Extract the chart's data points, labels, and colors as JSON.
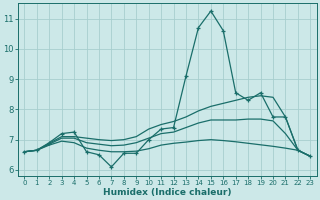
{
  "xlabel": "Humidex (Indice chaleur)",
  "bg_color": "#cce8e8",
  "grid_color": "#a8cece",
  "line_color": "#1a6e6a",
  "xlim": [
    -0.5,
    23.5
  ],
  "ylim": [
    5.8,
    11.5
  ],
  "xticks": [
    0,
    1,
    2,
    3,
    4,
    5,
    6,
    7,
    8,
    9,
    10,
    11,
    12,
    13,
    14,
    15,
    16,
    17,
    18,
    19,
    20,
    21,
    22,
    23
  ],
  "yticks": [
    6,
    7,
    8,
    9,
    10,
    11
  ],
  "line_jagged_x": [
    0,
    1,
    2,
    3,
    4,
    5,
    6,
    7,
    8,
    9,
    10,
    11,
    12,
    13,
    14,
    15,
    16,
    17,
    18,
    19,
    20,
    21,
    22,
    23
  ],
  "line_jagged_y": [
    6.6,
    6.65,
    6.9,
    7.2,
    7.25,
    6.6,
    6.5,
    6.1,
    6.55,
    6.55,
    7.0,
    7.35,
    7.4,
    9.1,
    10.7,
    11.25,
    10.6,
    8.55,
    8.3,
    8.55,
    7.75,
    7.75,
    6.65,
    6.45
  ],
  "line_upper_x": [
    0,
    1,
    2,
    3,
    4,
    5,
    6,
    7,
    8,
    9,
    10,
    11,
    12,
    13,
    14,
    15,
    16,
    17,
    18,
    19,
    20,
    21,
    22,
    23
  ],
  "line_upper_y": [
    6.6,
    6.65,
    6.88,
    7.1,
    7.1,
    7.05,
    7.0,
    6.97,
    7.0,
    7.1,
    7.35,
    7.5,
    7.6,
    7.75,
    7.95,
    8.1,
    8.2,
    8.3,
    8.4,
    8.45,
    8.4,
    7.75,
    6.65,
    6.45
  ],
  "line_mid_x": [
    0,
    1,
    2,
    3,
    4,
    5,
    6,
    7,
    8,
    9,
    10,
    11,
    12,
    13,
    14,
    15,
    16,
    17,
    18,
    19,
    20,
    21,
    22,
    23
  ],
  "line_mid_y": [
    6.6,
    6.65,
    6.85,
    7.05,
    7.05,
    6.9,
    6.85,
    6.8,
    6.82,
    6.9,
    7.05,
    7.2,
    7.25,
    7.4,
    7.55,
    7.65,
    7.65,
    7.65,
    7.68,
    7.68,
    7.62,
    7.2,
    6.65,
    6.45
  ],
  "line_lower_x": [
    0,
    1,
    2,
    3,
    4,
    5,
    6,
    7,
    8,
    9,
    10,
    11,
    12,
    13,
    14,
    15,
    16,
    17,
    18,
    19,
    20,
    21,
    22,
    23
  ],
  "line_lower_y": [
    6.6,
    6.65,
    6.82,
    6.95,
    6.9,
    6.72,
    6.65,
    6.6,
    6.6,
    6.62,
    6.7,
    6.82,
    6.88,
    6.92,
    6.97,
    7.0,
    6.97,
    6.93,
    6.88,
    6.83,
    6.78,
    6.72,
    6.65,
    6.45
  ]
}
